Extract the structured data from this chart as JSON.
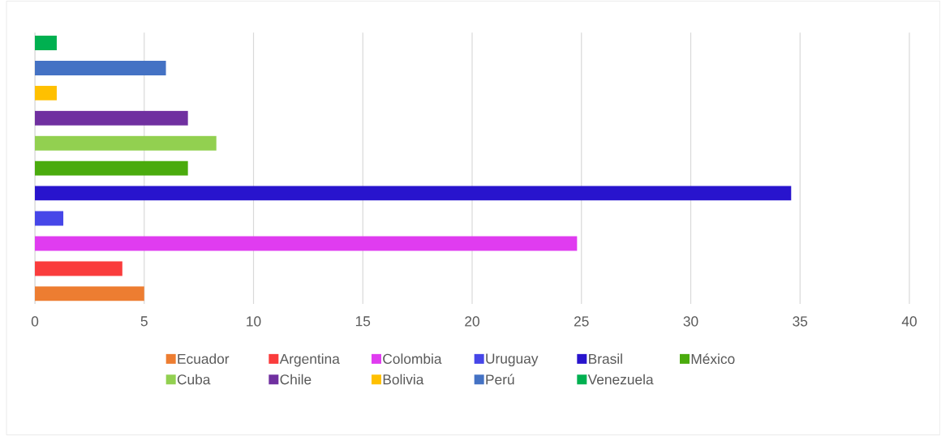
{
  "chart_data": {
    "type": "bar",
    "orientation": "horizontal",
    "categories": [
      null
    ],
    "series": [
      {
        "name": "Ecuador",
        "color": "#ed7d31",
        "values": [
          5.0
        ]
      },
      {
        "name": "Argentina",
        "color": "#fa3c3c",
        "values": [
          4.0
        ]
      },
      {
        "name": "Colombia",
        "color": "#e03cf0",
        "values": [
          24.8
        ]
      },
      {
        "name": "Uruguay",
        "color": "#4646e8",
        "values": [
          1.3
        ]
      },
      {
        "name": "Brasil",
        "color": "#2814cd",
        "values": [
          34.6
        ]
      },
      {
        "name": "México",
        "color": "#4aab0d",
        "values": [
          7.0
        ]
      },
      {
        "name": "Cuba",
        "color": "#92d050",
        "values": [
          8.3
        ]
      },
      {
        "name": "Chile",
        "color": "#7030a0",
        "values": [
          7.0
        ]
      },
      {
        "name": "Bolivia",
        "color": "#ffc000",
        "values": [
          1.0
        ]
      },
      {
        "name": "Perú",
        "color": "#4472c4",
        "values": [
          6.0
        ]
      },
      {
        "name": "Venezuela",
        "color": "#00b050",
        "values": [
          1.0
        ]
      }
    ],
    "xlim": [
      0,
      40
    ],
    "xticks": [
      0,
      5,
      10,
      15,
      20,
      25,
      30,
      35,
      40
    ],
    "grid": "x",
    "legend": "bottom"
  }
}
